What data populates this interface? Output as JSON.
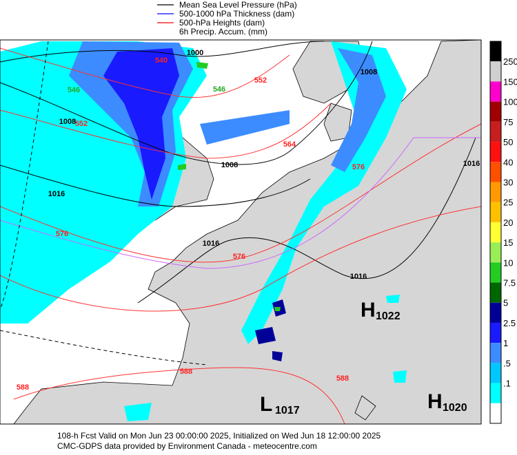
{
  "legend": [
    {
      "label": "Mean Sea Level Pressure (hPa)",
      "color": "#000000"
    },
    {
      "label": "500-1000 hPa Thickness (dam)",
      "color": "#0000ff"
    },
    {
      "label": "500-hPa Heights (dam)",
      "color": "#ff0000"
    },
    {
      "label": "6h Precip. Accum. (mm)"
    }
  ],
  "colorbar": {
    "labels": [
      "250",
      "150",
      "100",
      "75",
      "50",
      "40",
      "30",
      "25",
      "20",
      "15",
      "10",
      "7.5",
      "5",
      "2.5",
      "1",
      ".5",
      ".1"
    ],
    "colors": [
      "#000000",
      "#d0d0d0",
      "#ff00cc",
      "#a00000",
      "#c81e1e",
      "#ff1010",
      "#ff5000",
      "#ff9900",
      "#ffc000",
      "#ffff33",
      "#99ee55",
      "#22cc22",
      "#006600",
      "#000099",
      "#1a1aff",
      "#3c8cff",
      "#00c8ff",
      "#00ffff",
      "#ffffff"
    ]
  },
  "contour_labels": {
    "pressure": [
      "1000",
      "1008",
      "1008",
      "1008",
      "1016",
      "1016",
      "1016",
      "1016"
    ],
    "heights": [
      "540",
      "552",
      "552",
      "564",
      "576",
      "576",
      "576",
      "588",
      "588",
      "588"
    ],
    "thickness": [
      "546",
      "546"
    ]
  },
  "centers": [
    {
      "letter": "H",
      "value": "1022"
    },
    {
      "letter": "L",
      "value": "1017"
    },
    {
      "letter": "H",
      "value": "1020"
    }
  ],
  "footer": [
    "108-h Fcst Valid on Mon Jun 23 00:00:00 2025, Initialized on Wed Jun 18 12:00:00 2025",
    "CMC-GDPS data provided by Environment Canada - meteocentre.com"
  ]
}
